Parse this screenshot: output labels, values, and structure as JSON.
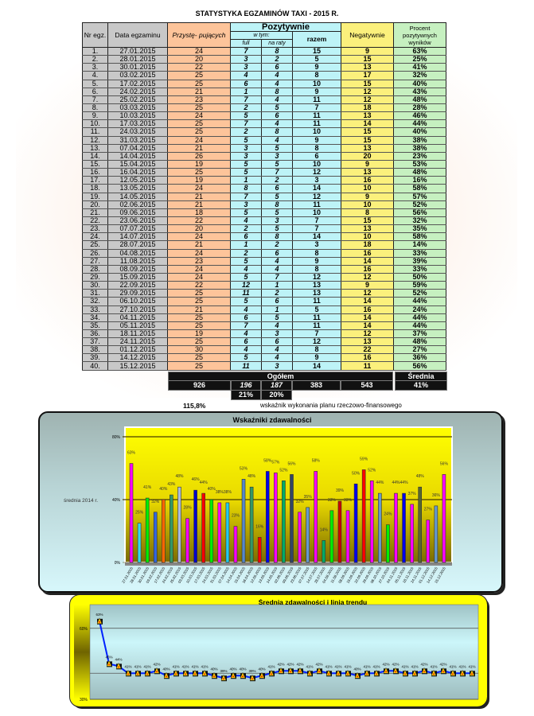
{
  "title": "STATYSTYKA  EGZAMINÓW  TAXI  -  2015 R.",
  "headers": {
    "nr": "Nr egz.",
    "date": "Data egzaminu",
    "przyst": "Przystę- pujących",
    "poz": "Pozytywnie",
    "wtym": "w tym:",
    "full": "full",
    "raty": "na raty",
    "razem": "razem",
    "neg": "Negatywnie",
    "proc": "Procent pozytywnych wyników"
  },
  "rows": [
    [
      "1.",
      "27.01.2015",
      24,
      7,
      8,
      15,
      9,
      "63%"
    ],
    [
      "2.",
      "28.01.2015",
      20,
      3,
      2,
      5,
      15,
      "25%"
    ],
    [
      "3.",
      "30.01.2015",
      22,
      3,
      6,
      9,
      13,
      "41%"
    ],
    [
      "4.",
      "03.02.2015",
      25,
      4,
      4,
      8,
      17,
      "32%"
    ],
    [
      "5.",
      "17.02.2015",
      25,
      6,
      4,
      10,
      15,
      "40%"
    ],
    [
      "6.",
      "24.02.2015",
      21,
      1,
      8,
      9,
      12,
      "43%"
    ],
    [
      "7.",
      "25.02.2015",
      23,
      7,
      4,
      11,
      12,
      "48%"
    ],
    [
      "8.",
      "03.03.2015",
      25,
      2,
      5,
      7,
      18,
      "28%"
    ],
    [
      "9.",
      "10.03.2015",
      24,
      5,
      6,
      11,
      13,
      "46%"
    ],
    [
      "10.",
      "17.03.2015",
      25,
      7,
      4,
      11,
      14,
      "44%"
    ],
    [
      "11.",
      "24.03.2015",
      25,
      2,
      8,
      10,
      15,
      "40%"
    ],
    [
      "12.",
      "31.03.2015",
      24,
      5,
      4,
      9,
      15,
      "38%"
    ],
    [
      "13.",
      "07.04.2015",
      21,
      3,
      5,
      8,
      13,
      "38%"
    ],
    [
      "14.",
      "14.04.2015",
      26,
      3,
      3,
      6,
      20,
      "23%"
    ],
    [
      "15.",
      "15.04.2015",
      19,
      5,
      5,
      10,
      9,
      "53%"
    ],
    [
      "16.",
      "16.04.2015",
      25,
      5,
      7,
      12,
      13,
      "48%"
    ],
    [
      "17.",
      "12.05.2015",
      19,
      1,
      2,
      3,
      16,
      "16%"
    ],
    [
      "18.",
      "13.05.2015",
      24,
      8,
      6,
      14,
      10,
      "58%"
    ],
    [
      "19.",
      "14.05.2015",
      21,
      7,
      5,
      12,
      9,
      "57%"
    ],
    [
      "20.",
      "02.06.2015",
      21,
      3,
      8,
      11,
      10,
      "52%"
    ],
    [
      "21.",
      "09.06.2015",
      18,
      5,
      5,
      10,
      8,
      "56%"
    ],
    [
      "22.",
      "23.06.2015",
      22,
      4,
      3,
      7,
      15,
      "32%"
    ],
    [
      "23.",
      "07.07.2015",
      20,
      2,
      5,
      7,
      13,
      "35%"
    ],
    [
      "24.",
      "14.07.2015",
      24,
      6,
      8,
      14,
      10,
      "58%"
    ],
    [
      "25.",
      "28.07.2015",
      21,
      1,
      2,
      3,
      18,
      "14%"
    ],
    [
      "26.",
      "04.08.2015",
      24,
      2,
      6,
      8,
      16,
      "33%"
    ],
    [
      "27.",
      "11.08.2015",
      23,
      5,
      4,
      9,
      14,
      "39%"
    ],
    [
      "28.",
      "08.09.2015",
      24,
      4,
      4,
      8,
      16,
      "33%"
    ],
    [
      "29.",
      "15.09.2015",
      24,
      5,
      7,
      12,
      12,
      "50%"
    ],
    [
      "30.",
      "22.09.2015",
      22,
      12,
      1,
      13,
      9,
      "59%"
    ],
    [
      "31.",
      "29.09.2015",
      25,
      11,
      2,
      13,
      12,
      "52%"
    ],
    [
      "32.",
      "06.10.2015",
      25,
      5,
      6,
      11,
      14,
      "44%"
    ],
    [
      "33.",
      "27.10.2015",
      21,
      4,
      1,
      5,
      16,
      "24%"
    ],
    [
      "34.",
      "04.11.2015",
      25,
      6,
      5,
      11,
      14,
      "44%"
    ],
    [
      "35.",
      "05.11.2015",
      25,
      7,
      4,
      11,
      14,
      "44%"
    ],
    [
      "36.",
      "18.11.2015",
      19,
      4,
      3,
      7,
      12,
      "37%"
    ],
    [
      "37.",
      "24.11.2015",
      25,
      6,
      6,
      12,
      13,
      "48%"
    ],
    [
      "38.",
      "01.12.2015",
      30,
      4,
      4,
      8,
      22,
      "27%"
    ],
    [
      "39.",
      "14.12.2015",
      25,
      5,
      4,
      9,
      16,
      "36%"
    ],
    [
      "40.",
      "15.12.2015",
      25,
      11,
      3,
      14,
      11,
      "56%"
    ]
  ],
  "totals": {
    "label": "Ogółem",
    "avg_label": "Średnia",
    "przyst": "926",
    "full": "196",
    "raty": "187",
    "razem": "383",
    "neg": "543",
    "avg": "41%",
    "full_pct": "21%",
    "raty_pct": "20%"
  },
  "plan": {
    "value": "115,8%",
    "label": "wskaźnik wykonania planu rzeczowo-finansowego"
  },
  "chart_data": [
    {
      "type": "bar",
      "title": "Wskaźniki  zdawalności",
      "ylim": [
        0,
        80
      ],
      "yticks": [
        "0%",
        "40%",
        "80%"
      ],
      "reference_line": 40,
      "reference_label": "średnia 2014 r.",
      "categories": [
        "27.01.2015",
        "28.01.2015",
        "30.01.2015",
        "03.02.2015",
        "17.02.2015",
        "24.02.2015",
        "25.02.2015",
        "03.03.2015",
        "10.03.2015",
        "17.03.2015",
        "24.03.2015",
        "31.03.2015",
        "07.04.2015",
        "14.04.2015",
        "15.04.2015",
        "16.04.2015",
        "12.05.2015",
        "13.05.2015",
        "14.05.2015",
        "02.06.2015",
        "09.06.2015",
        "23.06.2015",
        "07.07.2015",
        "14.07.2015",
        "28.07.2015",
        "04.08.2015",
        "11.08.2015",
        "08.09.2015",
        "15.09.2015",
        "22.09.2015",
        "29.09.2015",
        "06.10.2015",
        "27.10.2015",
        "04.11.2015",
        "05.11.2015",
        "18.11.2015",
        "24.11.2015",
        "01.12.2015",
        "14.12.2015",
        "15.12.2015"
      ],
      "values": [
        63,
        25,
        41,
        32,
        40,
        43,
        48,
        28,
        46,
        44,
        40,
        38,
        38,
        23,
        53,
        48,
        16,
        58,
        57,
        52,
        56,
        32,
        35,
        58,
        14,
        33,
        39,
        33,
        50,
        59,
        52,
        44,
        24,
        44,
        44,
        37,
        48,
        27,
        36,
        56
      ],
      "colors": [
        "#ff00ff",
        "#33ddee",
        "#00ee00",
        "#3366dd",
        "#ff6600",
        "#339966",
        "#aabbdd",
        "#ff00ff",
        "#0000cc",
        "#ff0000",
        "#00ee00",
        "#ff00ff",
        "#22ccee",
        "#ff00ff",
        "#5588cc",
        "#339966",
        "#ff0000",
        "#0000ee",
        "#ff00ff",
        "#00aa66",
        "#334466",
        "#ff00ff",
        "#6699cc",
        "#ff00ff",
        "#00aa66",
        "#00ee00",
        "#cc0000",
        "#ff00ff",
        "#0000ee",
        "#ff0000",
        "#ff00ff",
        "#6699cc",
        "#00ee00",
        "#ff00ff",
        "#0000ee",
        "#ff00ff",
        "#556633",
        "#ff00ff",
        "#6699cc",
        "#ff00ff"
      ]
    },
    {
      "type": "line",
      "title": "Średnia  zdawalności  i  linia  trendu",
      "ylim": [
        30,
        70
      ],
      "yticks": [
        "30%",
        "60%"
      ],
      "trend_line": 41,
      "values": [
        63,
        45,
        44,
        41,
        41,
        41,
        42,
        40,
        41,
        41,
        41,
        41,
        40,
        39,
        40,
        40,
        39,
        40,
        41,
        42,
        42,
        42,
        41,
        42,
        41,
        41,
        41,
        40,
        41,
        41,
        42,
        42,
        41,
        41,
        42,
        41,
        42,
        41,
        41,
        41
      ]
    }
  ]
}
